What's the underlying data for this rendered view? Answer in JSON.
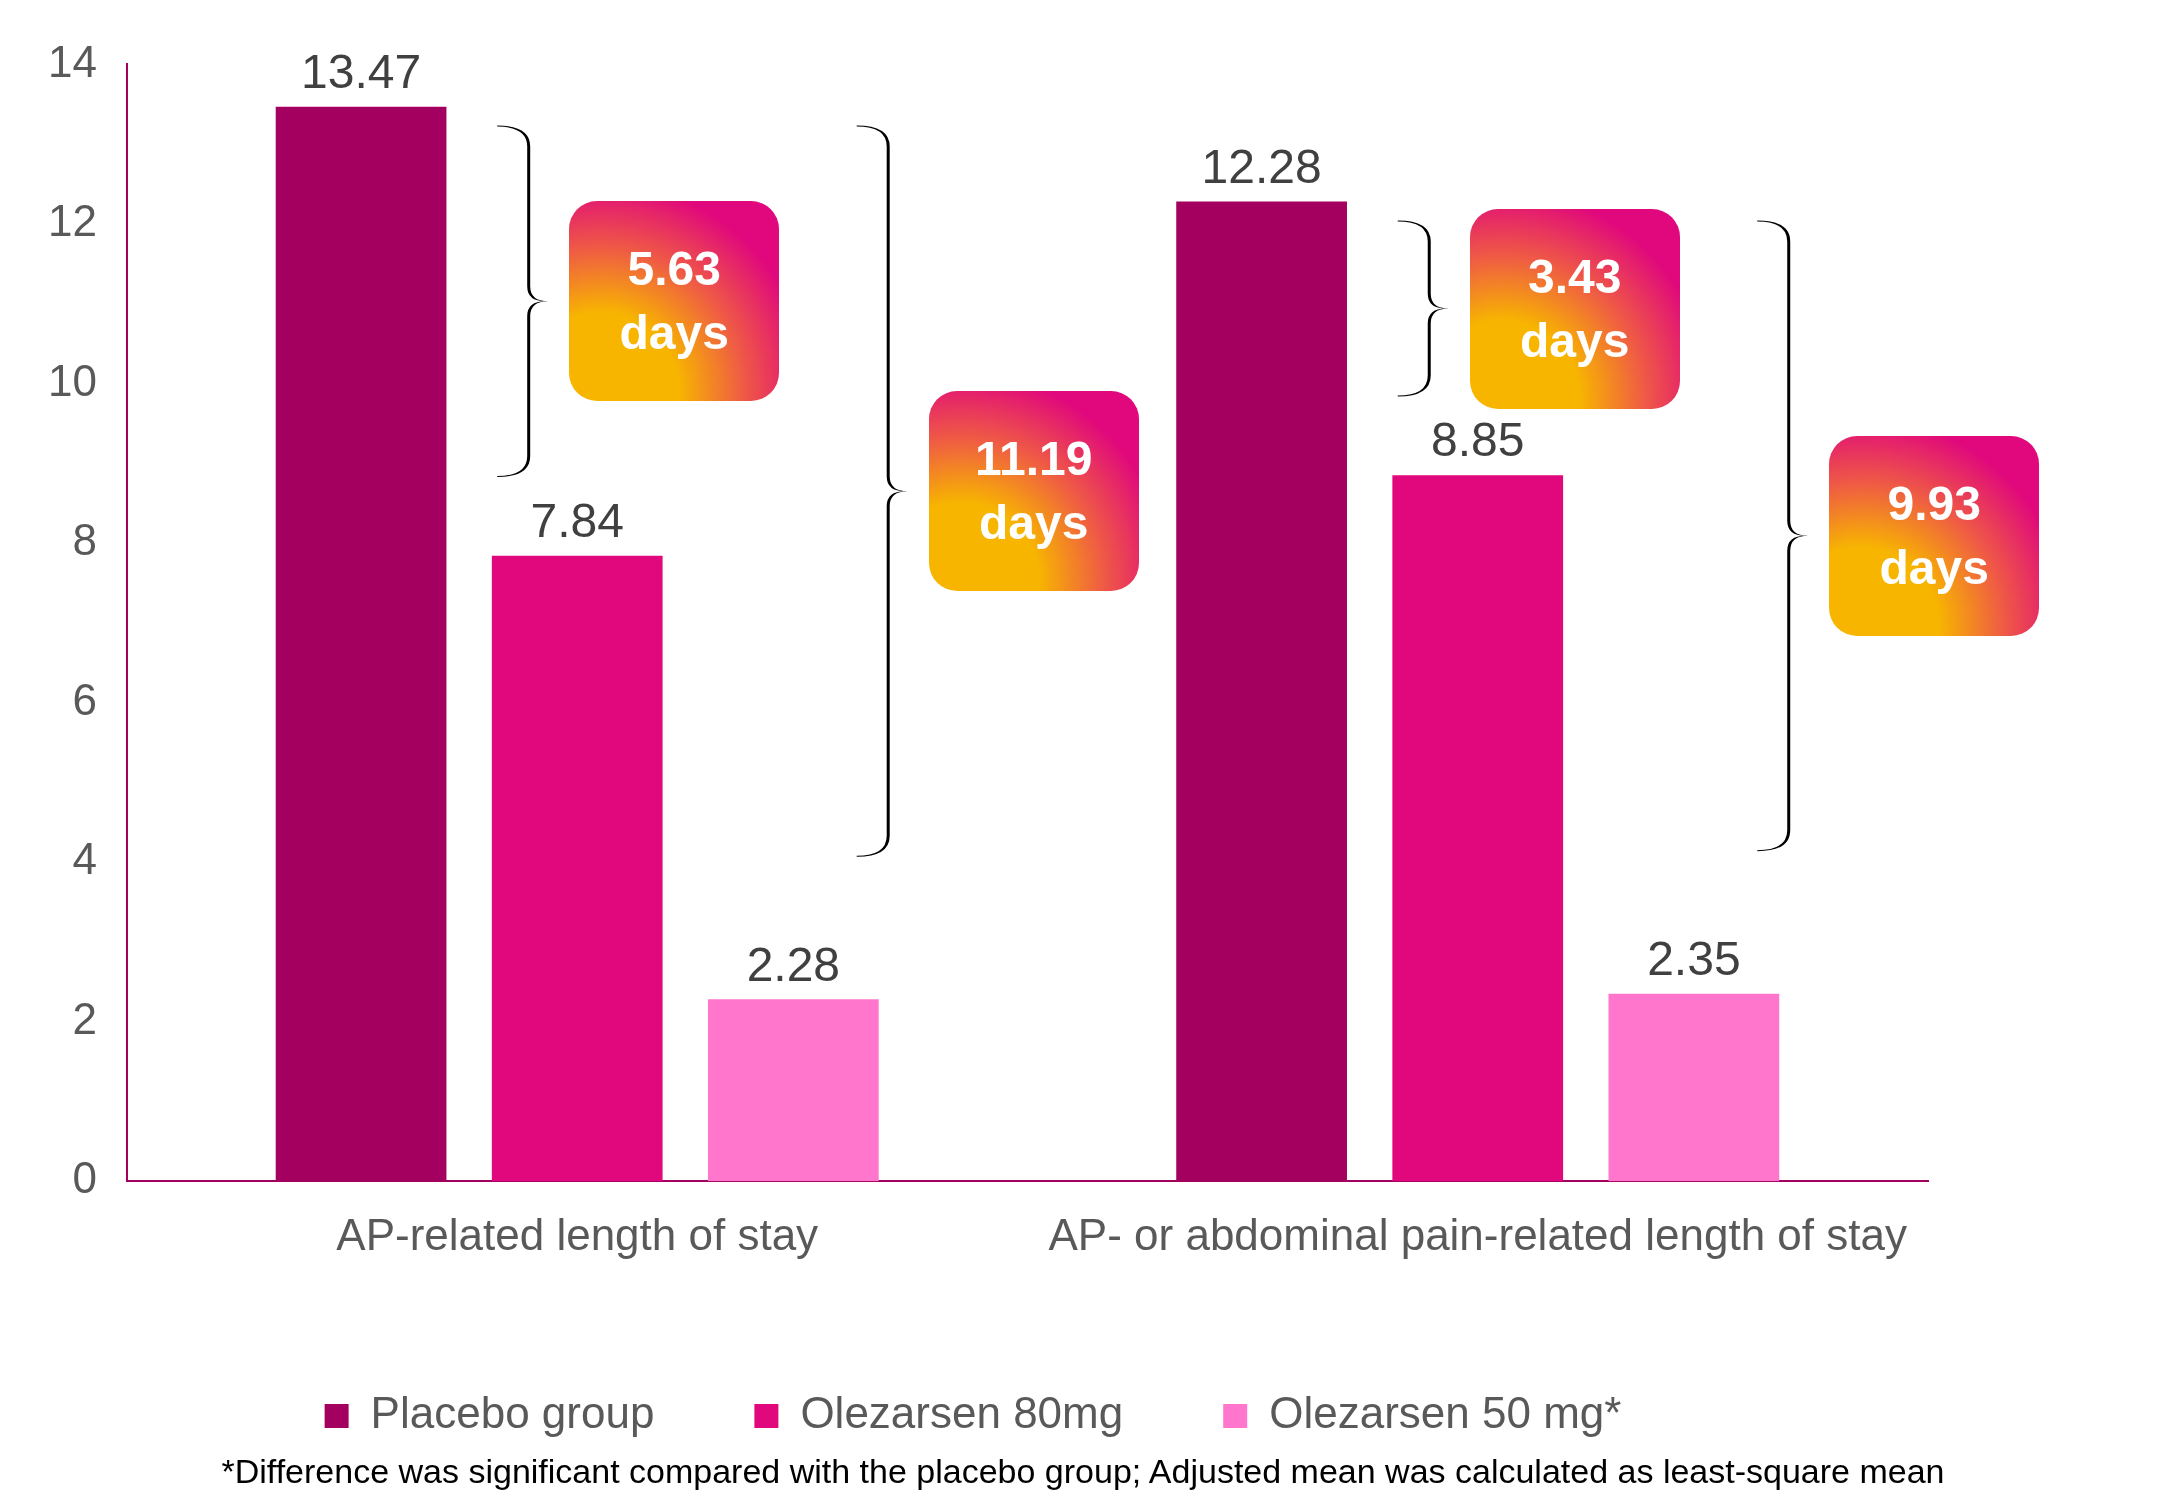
{
  "chart_data": {
    "type": "bar",
    "categories": [
      "AP-related length of stay",
      "AP- or abdominal pain-related length of stay"
    ],
    "series": [
      {
        "name": "Placebo group",
        "color": "#a3005f",
        "values": [
          13.47,
          12.28
        ]
      },
      {
        "name": "Olezarsen 80mg",
        "color": "#e0087c",
        "values": [
          7.84,
          8.85
        ]
      },
      {
        "name": "Olezarsen 50 mg*",
        "color": "#ff76cc",
        "values": [
          2.28,
          2.35
        ]
      }
    ],
    "ylim": [
      0,
      14
    ],
    "yticks": [
      0,
      2,
      4,
      6,
      8,
      10,
      12,
      14
    ],
    "data_labels": true,
    "legend": "bottom",
    "annotations": [
      "5.63 days",
      "11.19 days",
      "3.43 days",
      "9.93 days",
      "*Difference was significant compared with the placebo group; Adjusted mean was calculated as least-square mean"
    ]
  }
}
